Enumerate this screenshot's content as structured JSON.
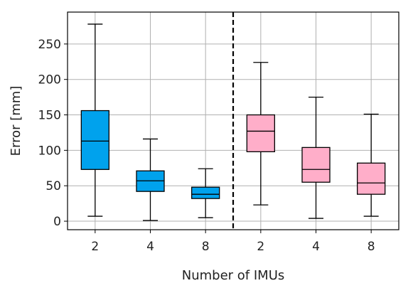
{
  "chart_data": {
    "type": "box",
    "title": "",
    "xlabel": "Number of IMUs",
    "ylabel": "Error  [mm]",
    "ylim": [
      -12,
      295
    ],
    "yticks": [
      0,
      50,
      100,
      150,
      200,
      250
    ],
    "grid": true,
    "divider": "dashed vertical line between the two groups",
    "groups": [
      {
        "color": "#00a2ed",
        "boxes": [
          {
            "label": "2",
            "whisker_low": 7,
            "q1": 73,
            "median": 113,
            "q3": 156,
            "whisker_high": 278
          },
          {
            "label": "4",
            "whisker_low": 1,
            "q1": 42,
            "median": 57,
            "q3": 71,
            "whisker_high": 116
          },
          {
            "label": "8",
            "whisker_low": 5,
            "q1": 32,
            "median": 38,
            "q3": 48,
            "whisker_high": 74
          }
        ]
      },
      {
        "color": "#ffaec9",
        "boxes": [
          {
            "label": "2",
            "whisker_low": 23,
            "q1": 98,
            "median": 127,
            "q3": 150,
            "whisker_high": 224
          },
          {
            "label": "4",
            "whisker_low": 4,
            "q1": 55,
            "median": 73,
            "q3": 104,
            "whisker_high": 175
          },
          {
            "label": "8",
            "whisker_low": 7,
            "q1": 38,
            "median": 54,
            "q3": 82,
            "whisker_high": 151
          }
        ]
      }
    ]
  }
}
